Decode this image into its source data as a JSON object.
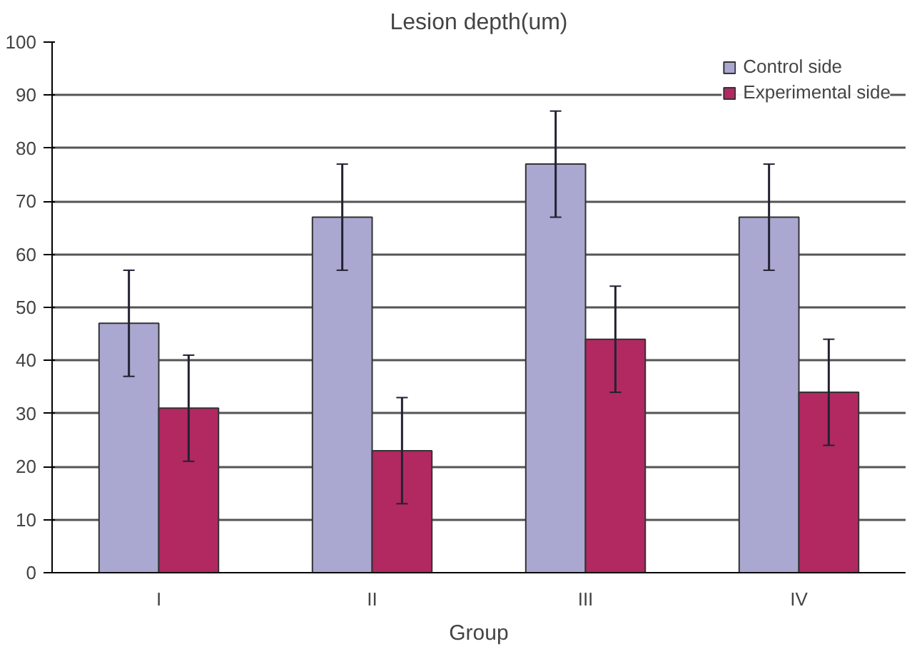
{
  "chart_data": {
    "type": "bar",
    "title": "Lesion depth(um)",
    "xlabel": "Group",
    "categories": [
      "I",
      "II",
      "III",
      "IV"
    ],
    "series": [
      {
        "name": "Control side",
        "color": "#aaa7d0",
        "values": [
          47,
          67,
          77,
          67
        ],
        "errors": [
          10,
          10,
          10,
          10
        ]
      },
      {
        "name": "Experimental side",
        "color": "#b22860",
        "values": [
          31,
          23,
          44,
          34
        ],
        "errors": [
          10,
          10,
          10,
          10
        ]
      }
    ],
    "ylim": [
      0,
      100
    ],
    "yticks": [
      0,
      10,
      20,
      30,
      40,
      50,
      60,
      70,
      80,
      90,
      100
    ],
    "grid": "y",
    "legend": "top right"
  }
}
